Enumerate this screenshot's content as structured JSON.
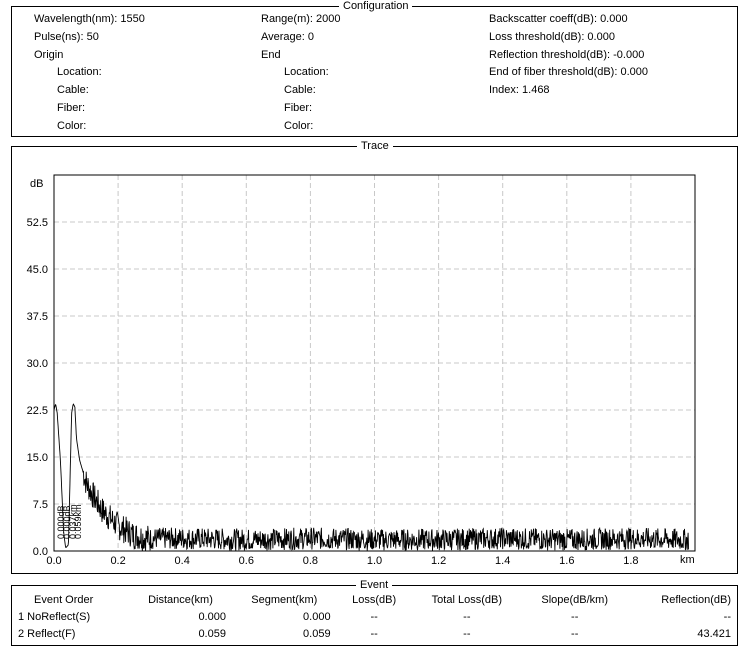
{
  "configuration": {
    "title": "Configuration",
    "col1": [
      {
        "label": "Wavelength(nm): 1550"
      },
      {
        "label": "Pulse(ns): 50"
      },
      {
        "label": "Origin"
      },
      {
        "label": "Location:"
      },
      {
        "label": "Cable:"
      },
      {
        "label": "Fiber:"
      },
      {
        "label": "Color:"
      }
    ],
    "col2": [
      {
        "label": "Range(m): 2000"
      },
      {
        "label": "Average: 0"
      },
      {
        "label": "End"
      },
      {
        "label": "Location:"
      },
      {
        "label": "Cable:"
      },
      {
        "label": "Fiber:"
      },
      {
        "label": "Color:"
      }
    ],
    "col3": [
      {
        "label": "Backscatter coeff(dB): 0.000"
      },
      {
        "label": "Loss threshold(dB): 0.000"
      },
      {
        "label": "Reflection threshold(dB): -0.000"
      },
      {
        "label": "End of fiber threshold(dB): 0.000"
      },
      {
        "label": "Index: 1.468"
      }
    ]
  },
  "trace": {
    "title": "Trace",
    "y_unit": "dB",
    "x_unit": "km",
    "marker_labels": [
      "0.000dB",
      "0.000dB",
      "0.037km",
      "0.059km"
    ]
  },
  "chart_data": {
    "type": "line",
    "title": "Trace",
    "xlabel": "km",
    "ylabel": "dB",
    "xlim": [
      0.0,
      2.0
    ],
    "ylim": [
      0.0,
      60.0
    ],
    "x_ticks": [
      "0.0",
      "0.2",
      "0.4",
      "0.6",
      "0.8",
      "1.0",
      "1.2",
      "1.4",
      "1.6",
      "1.8"
    ],
    "y_ticks": [
      "0.0",
      "7.5",
      "15.0",
      "22.5",
      "30.0",
      "37.5",
      "45.0",
      "52.5"
    ],
    "grid": true,
    "series": [
      {
        "x": [
          0.0,
          0.005,
          0.01,
          0.02,
          0.03,
          0.035,
          0.037,
          0.045,
          0.055,
          0.06,
          0.065,
          0.07,
          0.08,
          0.1,
          0.12,
          0.15,
          0.2,
          0.25,
          0.3,
          0.4,
          0.6,
          0.8,
          1.0,
          1.2,
          1.4,
          1.6,
          1.8,
          1.98
        ],
        "y": [
          22.5,
          23.5,
          22.0,
          14.5,
          3.0,
          1.0,
          0.5,
          1.0,
          22.0,
          23.5,
          23.0,
          18.0,
          14.5,
          11.0,
          9.0,
          6.5,
          4.0,
          2.5,
          2.0,
          2.0,
          1.8,
          2.0,
          1.8,
          1.8,
          2.0,
          1.8,
          2.0,
          1.8
        ]
      }
    ]
  },
  "event_table": {
    "title": "Event",
    "headers": [
      "Event Order",
      "Distance(km)",
      "Segment(km)",
      "Loss(dB)",
      "Total Loss(dB)",
      "Slope(dB/km)",
      "Reflection(dB)"
    ],
    "rows": [
      [
        "1 NoReflect(S)",
        "0.000",
        "0.000",
        "--",
        "--",
        "--",
        "--"
      ],
      [
        "2 Reflect(F)",
        "0.059",
        "0.059",
        "--",
        "--",
        "--",
        "43.421"
      ]
    ]
  }
}
